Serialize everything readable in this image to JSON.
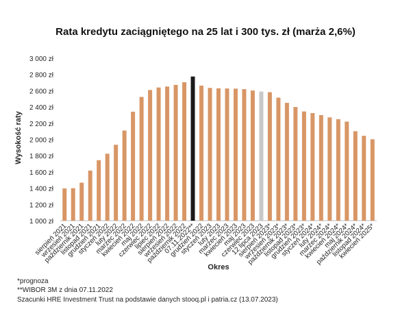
{
  "footnotes": {
    "forecast": "*prognoza",
    "wibor": "**WIBOR 3M z dnia 07.11.2022",
    "source": "Szacunki HRE Investment Trust na podstawie danych stooq.pl i patria.cz (13.07.2023)"
  },
  "chart_data": {
    "type": "bar",
    "title": "Rata kredytu zaciągniętego na 25 lat i 300 tys. zł (marża 2,6%)",
    "xlabel": "Okres",
    "ylabel": "Wysokość raty",
    "ylim": [
      1000,
      3000
    ],
    "yticks": [
      "1 000 zł",
      "1 200 zł",
      "1 400 zł",
      "1 600 zł",
      "1 800 zł",
      "2 000 zł",
      "2 200 zł",
      "2 400 zł",
      "2 600 zł",
      "2 800 zł",
      "3 000 zł"
    ],
    "grid": false,
    "legend": "none",
    "colors": {
      "default": "#d89666",
      "highlight": "#1a1a1a",
      "current": "#c8c8c8"
    },
    "categories": [
      "sierpień 2021",
      "wrzesień 2021",
      "październik 2021",
      "listopad 2021",
      "grudzień 2021",
      "styczeń 2022",
      "luty 2022",
      "marzec 2022",
      "kwiecień 2022",
      "maj 2022",
      "czerwiec 2022",
      "lipiec 2022",
      "sierpień 2022",
      "wrzesień 2022",
      "październik 2022",
      "07.11.2022**",
      "grudzień 2022",
      "styczeń 2023",
      "luty 2023",
      "marzec 2023",
      "kwiecień 2023",
      "maj 2023",
      "czerwiec 2023",
      "12 lipca 2023",
      "sierpień 2023*",
      "wrzesień 2023*",
      "październik 2023*",
      "listopad 2023*",
      "grudzień 2023*",
      "styczeń 2024*",
      "luty 2024*",
      "marzec 2024*",
      "kwiecień 2024*",
      "maj 2024*",
      "październik 2024*",
      "listopad 2024*",
      "kwiecień 2025*"
    ],
    "values": [
      1398,
      1400,
      1468,
      1617,
      1745,
      1825,
      1935,
      2110,
      2342,
      2524,
      2609,
      2640,
      2652,
      2672,
      2705,
      2775,
      2663,
      2635,
      2630,
      2628,
      2626,
      2620,
      2603,
      2590,
      2582,
      2515,
      2451,
      2400,
      2345,
      2325,
      2300,
      2272,
      2250,
      2220,
      2102,
      2045,
      2002
    ],
    "bar_kinds": [
      "d",
      "d",
      "d",
      "d",
      "d",
      "d",
      "d",
      "d",
      "d",
      "d",
      "d",
      "d",
      "d",
      "d",
      "d",
      "h",
      "d",
      "d",
      "d",
      "d",
      "d",
      "d",
      "d",
      "c",
      "d",
      "d",
      "d",
      "d",
      "d",
      "d",
      "d",
      "d",
      "d",
      "d",
      "d",
      "d",
      "d"
    ]
  }
}
